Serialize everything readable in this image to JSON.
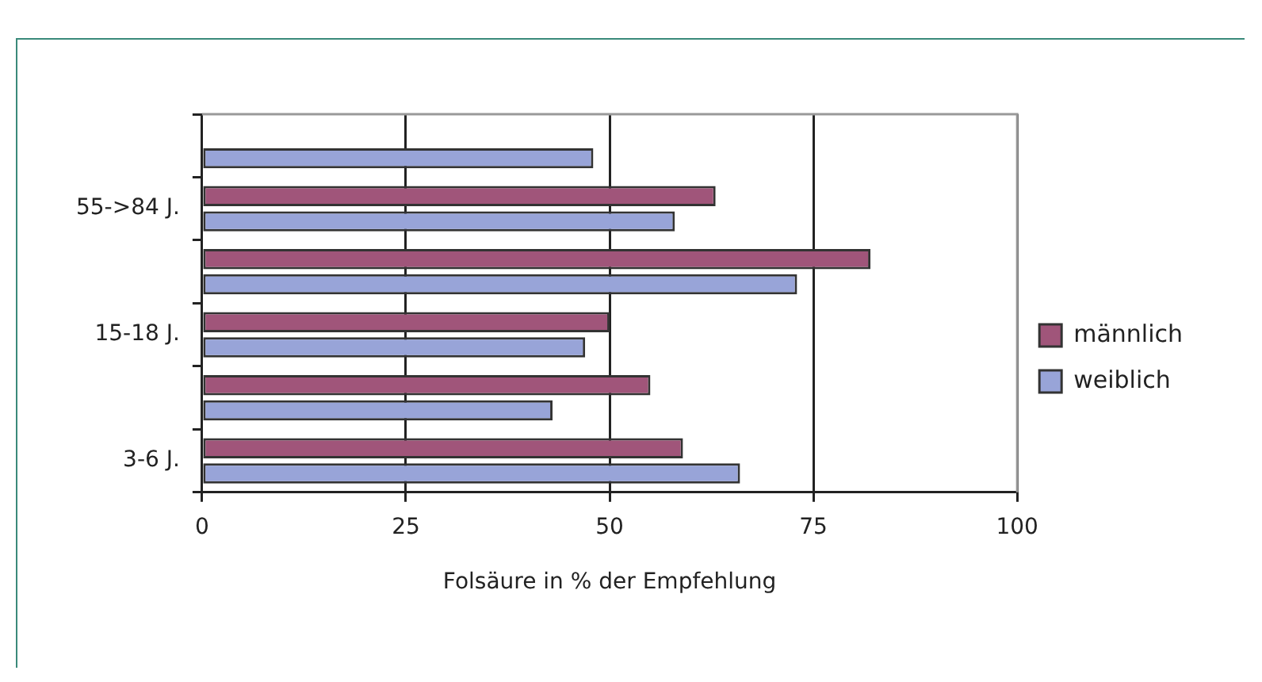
{
  "chart_data": {
    "type": "bar",
    "orientation": "horizontal",
    "xlabel": "Folsäure in % der Empfehlung",
    "categories": [
      null,
      "55->84 J.",
      null,
      "15-18 J.",
      null,
      "3-6 J."
    ],
    "series": [
      {
        "name": "männlich",
        "color": "#a0557a",
        "values": [
          null,
          63,
          82,
          50,
          55,
          59
        ]
      },
      {
        "name": "weiblich",
        "color": "#98a4d8",
        "values": [
          48,
          58,
          73,
          47,
          43,
          66
        ]
      }
    ],
    "xlim": [
      0,
      100
    ],
    "xticks": [
      0,
      25,
      50,
      75,
      100
    ],
    "grid": "x",
    "legend": "right"
  }
}
